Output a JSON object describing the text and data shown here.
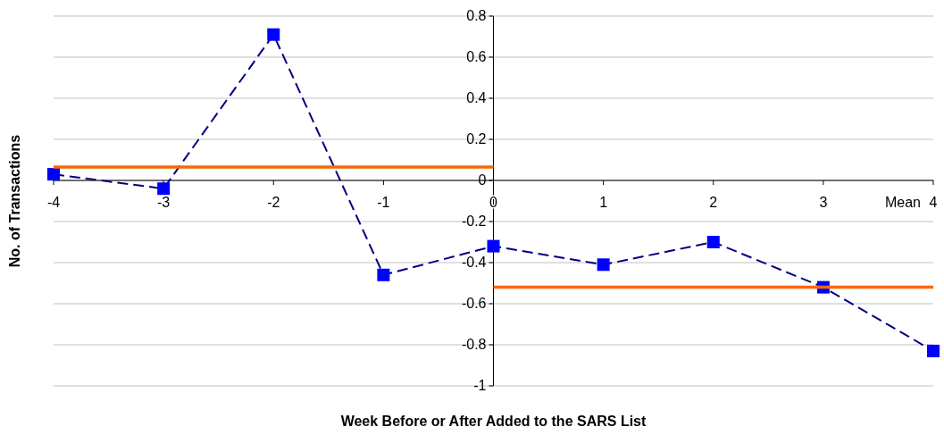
{
  "chart_data": {
    "type": "line",
    "xlabel": "Week Before or After Added to the SARS List",
    "ylabel": "No. of Transactions",
    "x": [
      -4,
      -3,
      -2,
      -1,
      0,
      1,
      2,
      3,
      4
    ],
    "series": [
      {
        "color": "#0000ff",
        "values": [
          0.03,
          -0.04,
          0.71,
          -0.46,
          -0.32,
          -0.41,
          -0.3,
          -0.52,
          -0.83
        ],
        "line_style": "dashed",
        "marker": "square"
      },
      {
        "color": "#ff6600",
        "x": [
          -4,
          0
        ],
        "values": [
          0.065,
          0.065
        ],
        "line_style": "solid",
        "marker": "none"
      },
      {
        "color": "#ff6600",
        "x": [
          0,
          4
        ],
        "values": [
          -0.52,
          -0.52
        ],
        "line_style": "solid",
        "marker": "none"
      }
    ],
    "xlim": [
      -4,
      4
    ],
    "xticks": [
      -4,
      -3,
      -2,
      -1,
      0,
      1,
      2,
      3,
      4
    ],
    "ylim": [
      -1,
      0.8
    ],
    "yticks": [
      -1,
      -0.8,
      -0.6,
      -0.4,
      -0.2,
      0,
      0.2,
      0.4,
      0.6,
      0.8
    ],
    "grid": "y",
    "annotations": [
      "Mean"
    ]
  }
}
